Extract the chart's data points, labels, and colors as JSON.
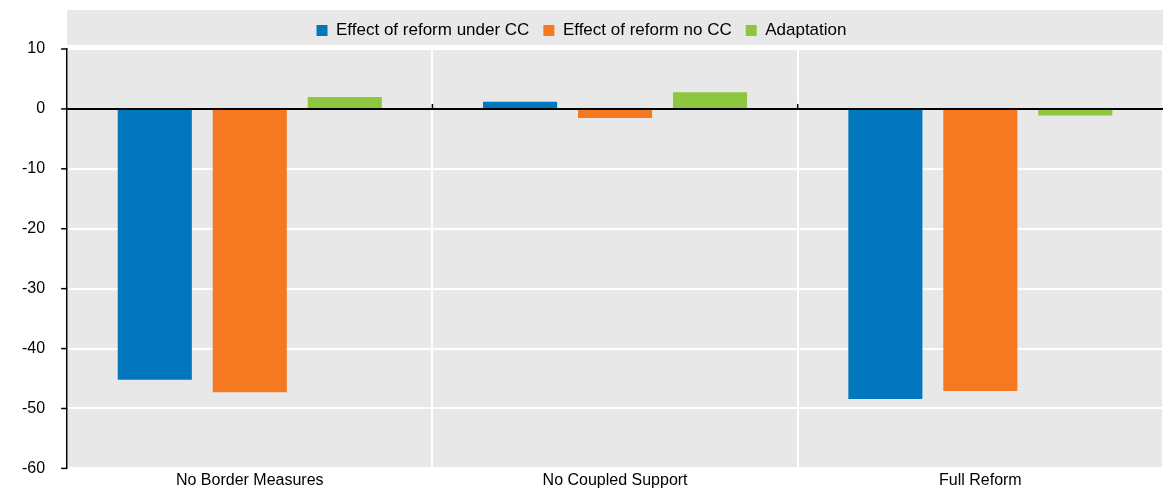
{
  "chart_data": {
    "type": "bar",
    "categories": [
      "No Border Measures",
      "No Coupled Support",
      "Full Reform"
    ],
    "series": [
      {
        "name": "Effect of reform under CC",
        "color": "#0277bd",
        "values": [
          -45.2,
          1.2,
          -48.4
        ]
      },
      {
        "name": "Effect of reform no CC",
        "color": "#f47920",
        "values": [
          -47.3,
          -1.5,
          -47.1
        ]
      },
      {
        "name": "Adaptation",
        "color": "#8dc63f",
        "values": [
          2.0,
          2.8,
          -1.1
        ]
      }
    ],
    "ylim": [
      -60,
      10
    ],
    "yticks": [
      -60,
      -50,
      -40,
      -30,
      -20,
      -10,
      0,
      10
    ],
    "grid": true,
    "legend": "top"
  }
}
